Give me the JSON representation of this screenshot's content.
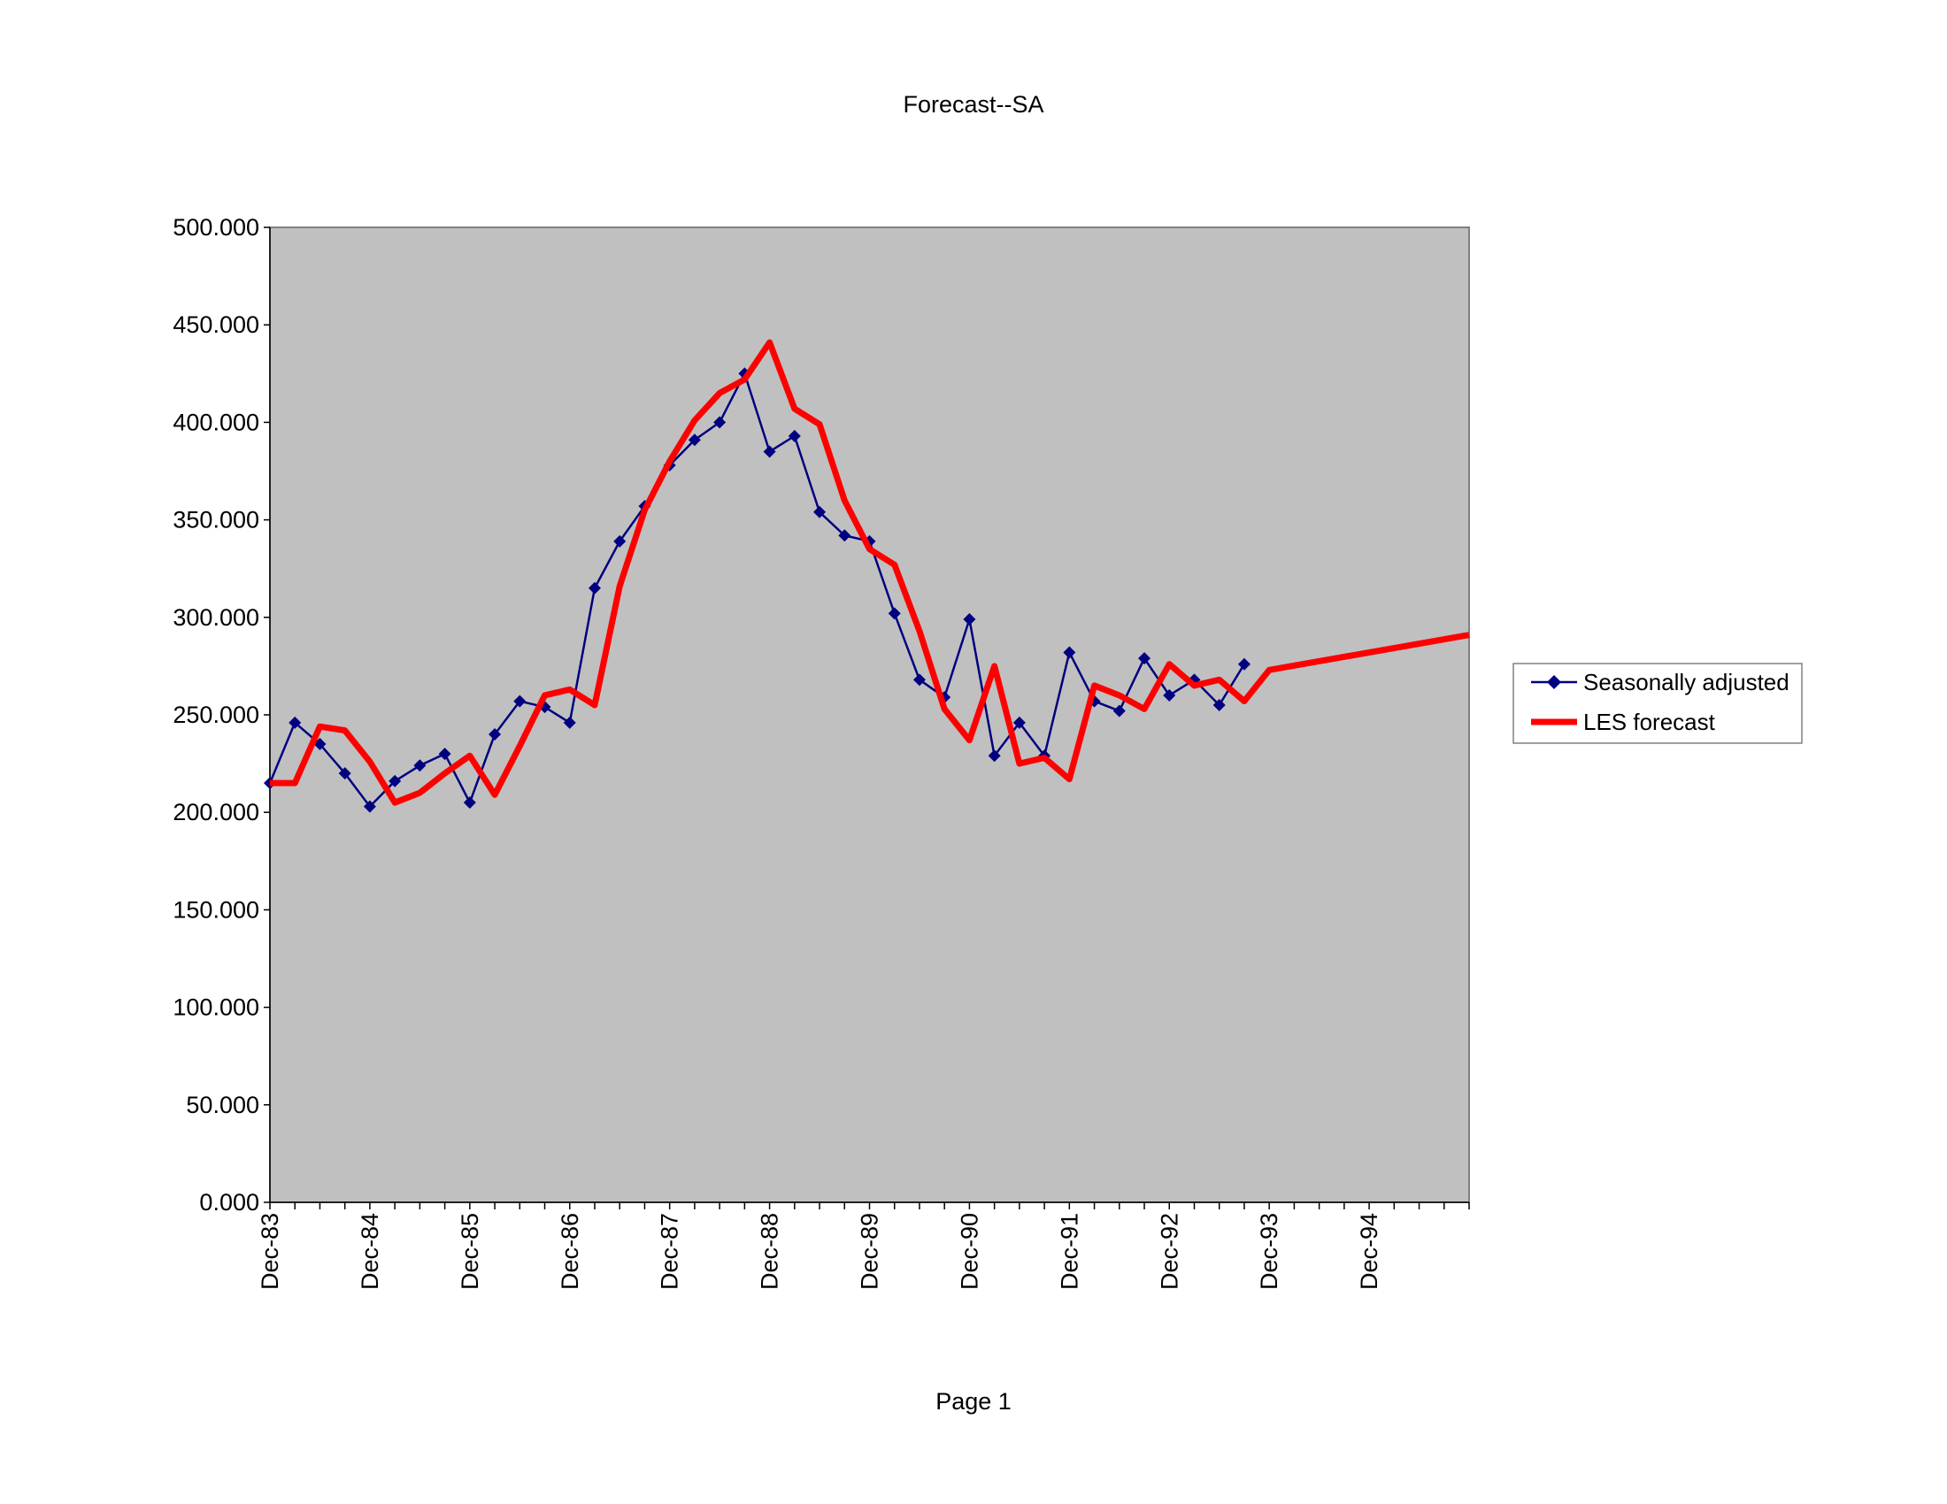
{
  "page": {
    "title": "Forecast--SA",
    "footer": "Page 1"
  },
  "colors": {
    "plot_background": "#c0c0c0",
    "seasonally_adjusted": "#000080",
    "les_forecast": "#ff0000"
  },
  "chart_data": {
    "type": "line",
    "title": "Forecast--SA",
    "xlabel": "",
    "ylabel": "",
    "ylim": [
      0,
      500
    ],
    "yticks": [
      "0.000",
      "50.000",
      "100.000",
      "150.000",
      "200.000",
      "250.000",
      "300.000",
      "350.000",
      "400.000",
      "450.000",
      "500.000"
    ],
    "x_period": "quarterly",
    "x_start": "Dec-83",
    "x_end": "Dec-95",
    "xtick_labels": [
      "Dec-83",
      "Dec-84",
      "Dec-85",
      "Dec-86",
      "Dec-87",
      "Dec-88",
      "Dec-89",
      "Dec-90",
      "Dec-91",
      "Dec-92",
      "Dec-93",
      "Dec-94"
    ],
    "grid": false,
    "legend_position": "right",
    "series": [
      {
        "name": "Seasonally adjusted",
        "style": "line-with-diamond-markers",
        "x": [
          "Dec-83",
          "Mar-84",
          "Jun-84",
          "Sep-84",
          "Dec-84",
          "Mar-85",
          "Jun-85",
          "Sep-85",
          "Dec-85",
          "Mar-86",
          "Jun-86",
          "Sep-86",
          "Dec-86",
          "Mar-87",
          "Jun-87",
          "Sep-87",
          "Dec-87",
          "Mar-88",
          "Jun-88",
          "Sep-88",
          "Dec-88",
          "Mar-89",
          "Jun-89",
          "Sep-89",
          "Dec-89",
          "Mar-90",
          "Jun-90",
          "Sep-90",
          "Dec-90",
          "Mar-91",
          "Jun-91",
          "Sep-91",
          "Dec-91",
          "Mar-92",
          "Jun-92",
          "Sep-92",
          "Dec-92",
          "Mar-93",
          "Jun-93",
          "Sep-93"
        ],
        "values": [
          215,
          246,
          235,
          220,
          203,
          216,
          224,
          230,
          205,
          240,
          257,
          254,
          246,
          315,
          339,
          357,
          378,
          391,
          400,
          425,
          385,
          393,
          354,
          342,
          339,
          302,
          268,
          259,
          299,
          229,
          246,
          229,
          282,
          257,
          252,
          279,
          260,
          268,
          255,
          276
        ]
      },
      {
        "name": "LES forecast",
        "style": "thick-line",
        "x": [
          "Dec-83",
          "Mar-84",
          "Jun-84",
          "Sep-84",
          "Dec-84",
          "Mar-85",
          "Jun-85",
          "Sep-85",
          "Dec-85",
          "Mar-86",
          "Jun-86",
          "Sep-86",
          "Dec-86",
          "Mar-87",
          "Jun-87",
          "Sep-87",
          "Dec-87",
          "Mar-88",
          "Jun-88",
          "Sep-88",
          "Dec-88",
          "Mar-89",
          "Jun-89",
          "Sep-89",
          "Dec-89",
          "Mar-90",
          "Jun-90",
          "Sep-90",
          "Dec-90",
          "Mar-91",
          "Jun-91",
          "Sep-91",
          "Dec-91",
          "Mar-92",
          "Jun-92",
          "Sep-92",
          "Dec-92",
          "Mar-93",
          "Jun-93",
          "Sep-93",
          "Dec-93",
          "Dec-95"
        ],
        "values": [
          215,
          215,
          244,
          242,
          226,
          205,
          210,
          220,
          229,
          209,
          234,
          260,
          263,
          255,
          316,
          355,
          380,
          401,
          415,
          422,
          441,
          407,
          399,
          360,
          335,
          327,
          293,
          253,
          237,
          275,
          225,
          228,
          217,
          265,
          260,
          253,
          276,
          265,
          268,
          257,
          273,
          291
        ]
      }
    ]
  }
}
